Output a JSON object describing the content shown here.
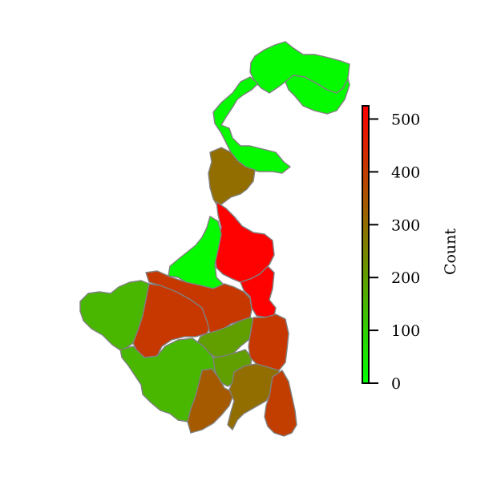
{
  "colorbar": {
    "label": "Count",
    "min": 0,
    "max": 525,
    "ticks": [
      {
        "value": 0,
        "label": "0"
      },
      {
        "value": 100,
        "label": "100"
      },
      {
        "value": 200,
        "label": "200"
      },
      {
        "value": 300,
        "label": "300"
      },
      {
        "value": 400,
        "label": "400"
      },
      {
        "value": 500,
        "label": "500"
      }
    ],
    "colors": [
      "#00ff00",
      "#ff0000"
    ]
  },
  "map": {
    "regions": [
      {
        "id": "darjeeling",
        "value": 10
      },
      {
        "id": "jalpaiguri",
        "value": 10
      },
      {
        "id": "dakshin-dinajpur",
        "value": 300
      },
      {
        "id": "uttar-dinajpur-malda",
        "value": 520
      },
      {
        "id": "murshidabad",
        "value": 10
      },
      {
        "id": "nadia",
        "value": 520
      },
      {
        "id": "purulia",
        "value": 150
      },
      {
        "id": "bankura-birbhum",
        "value": 410
      },
      {
        "id": "bardhaman",
        "value": 410
      },
      {
        "id": "hooghly",
        "value": 200
      },
      {
        "id": "paschim-medinipur",
        "value": 150
      },
      {
        "id": "howrah",
        "value": 200
      },
      {
        "id": "north-24-parganas",
        "value": 410
      },
      {
        "id": "purba-medinipur",
        "value": 340
      },
      {
        "id": "south-24-parganas",
        "value": 300
      },
      {
        "id": "sundarbans",
        "value": 400
      }
    ]
  }
}
